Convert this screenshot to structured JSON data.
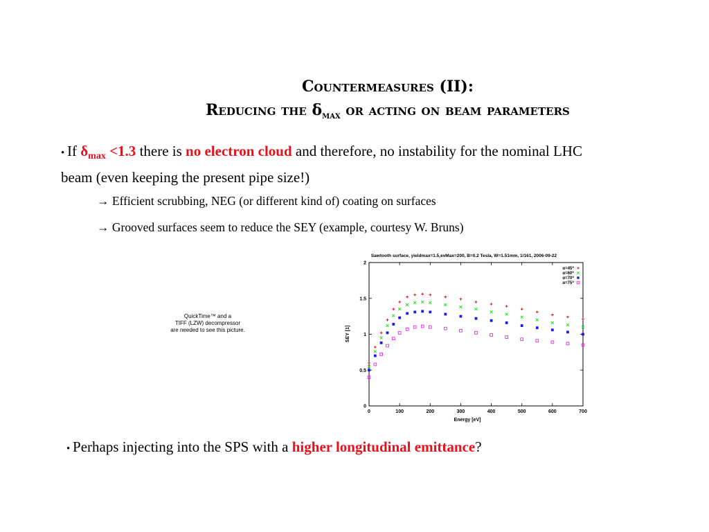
{
  "slide": {
    "title_line1": "Countermeasures (II):",
    "title_line2_prefix": "Reducing the ",
    "title_line2_delta": "δ",
    "title_line2_sub": "max",
    "title_line2_suffix": " or acting on beam parameters",
    "bullet1": {
      "bullet": "• ",
      "if": "If ",
      "delta": "δ",
      "sub": "max",
      "cond": " <1.3",
      "t1": " there is ",
      "highlight": "no electron cloud",
      "t2": " and therefore, no instability for the nominal LHC beam (even keeping the present pipe size!)"
    },
    "arrow1": {
      "arrow": "→",
      "text": " Efficient scrubbing, NEG (or different kind of) coating on surfaces"
    },
    "arrow2": {
      "arrow": "→",
      "text": " Grooved surfaces seem to reduce the SEY (example, courtesy W. Bruns)"
    },
    "quicktime_note": [
      "QuickTime™ and a",
      "TIFF (LZW) decompressor",
      "are needed to see this picture."
    ],
    "bullet2": {
      "bullet": "• ",
      "t1": "Perhaps injecting into the SPS with a ",
      "highlight": "higher longitudinal emittance",
      "t2": "?"
    }
  },
  "colors": {
    "red": "#e8101a",
    "green": "#22dd22",
    "blue": "#1a1ae0",
    "magenta": "#ee22ee"
  },
  "chart_data": {
    "type": "scatter",
    "title": "Sawtooth surface, yieldmax=1.5,evMax=200, B=0.2 Tesla, W=1.51mm, 1/161, 2006-09-22",
    "xlabel": "Energy [eV]",
    "ylabel": "SEY [1]",
    "xlim": [
      0,
      700
    ],
    "ylim": [
      0,
      2
    ],
    "xticks": [
      0,
      100,
      200,
      300,
      400,
      500,
      600,
      700
    ],
    "yticks": [
      0,
      0.5,
      1,
      1.5,
      2
    ],
    "ytick_labels": [
      "0",
      "0.5",
      "1",
      "1.5",
      "2"
    ],
    "legend_position": "top-right",
    "series": [
      {
        "name": "α=45°",
        "label_base": "α=45",
        "marker": "plus",
        "color": "#e8101a",
        "x": [
          0,
          20,
          40,
          60,
          80,
          100,
          125,
          150,
          175,
          200,
          250,
          300,
          350,
          400,
          450,
          500,
          550,
          600,
          650,
          700
        ],
        "y": [
          0.6,
          0.82,
          1.02,
          1.2,
          1.35,
          1.45,
          1.52,
          1.55,
          1.56,
          1.55,
          1.52,
          1.49,
          1.45,
          1.42,
          1.39,
          1.35,
          1.31,
          1.27,
          1.24,
          1.21
        ]
      },
      {
        "name": "α=60°",
        "label_base": "α=60",
        "marker": "cross",
        "color": "#22dd22",
        "x": [
          0,
          20,
          40,
          60,
          80,
          100,
          125,
          150,
          175,
          200,
          250,
          300,
          350,
          400,
          450,
          500,
          550,
          600,
          650,
          700
        ],
        "y": [
          0.55,
          0.76,
          0.95,
          1.12,
          1.26,
          1.35,
          1.41,
          1.44,
          1.45,
          1.44,
          1.41,
          1.38,
          1.35,
          1.31,
          1.28,
          1.24,
          1.2,
          1.16,
          1.13,
          1.1
        ]
      },
      {
        "name": "α=70°",
        "label_base": "α=70",
        "marker": "square-filled",
        "color": "#1a1ae0",
        "x": [
          0,
          20,
          40,
          60,
          80,
          100,
          125,
          150,
          175,
          200,
          250,
          300,
          350,
          400,
          450,
          500,
          550,
          600,
          650,
          700
        ],
        "y": [
          0.5,
          0.7,
          0.88,
          1.02,
          1.14,
          1.23,
          1.29,
          1.31,
          1.32,
          1.31,
          1.28,
          1.25,
          1.22,
          1.19,
          1.16,
          1.12,
          1.09,
          1.06,
          1.03,
          1.0
        ]
      },
      {
        "name": "α=75°",
        "label_base": "α=75",
        "marker": "square-open",
        "color": "#ee22ee",
        "x": [
          0,
          20,
          40,
          60,
          80,
          100,
          125,
          150,
          175,
          200,
          250,
          300,
          350,
          400,
          450,
          500,
          550,
          600,
          650,
          700
        ],
        "y": [
          0.4,
          0.58,
          0.72,
          0.84,
          0.94,
          1.02,
          1.07,
          1.1,
          1.11,
          1.1,
          1.08,
          1.05,
          1.02,
          0.99,
          0.96,
          0.93,
          0.91,
          0.89,
          0.87,
          0.85
        ]
      }
    ]
  }
}
